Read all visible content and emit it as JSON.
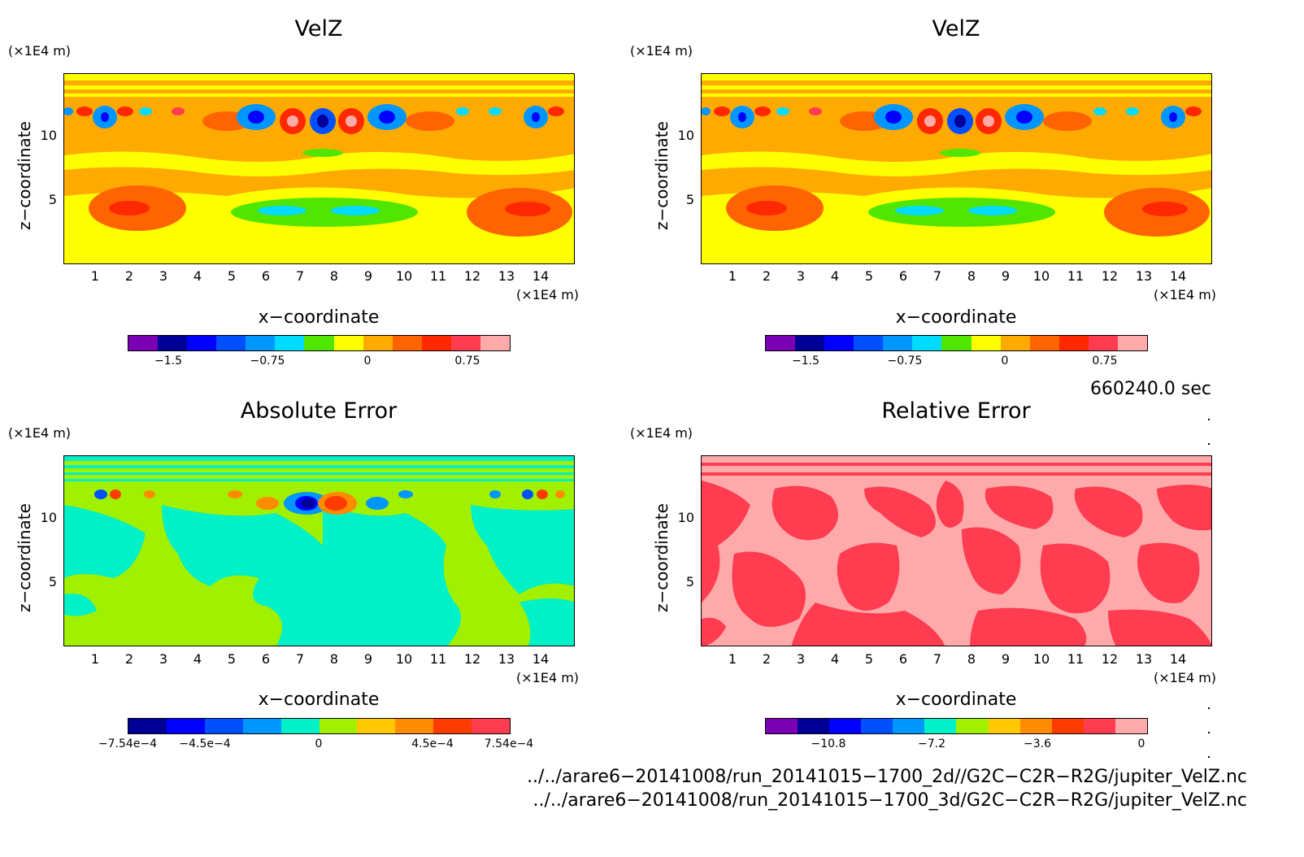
{
  "panels": [
    {
      "id": "top-left",
      "title": "VelZ",
      "y_unit": "(×1E4 m)",
      "x_unit": "(×1E4 m)",
      "xlabel": "x−coordinate",
      "ylabel": "z−coordinate",
      "x_ticks": [
        "1",
        "2",
        "3",
        "4",
        "5",
        "6",
        "7",
        "8",
        "9",
        "10",
        "11",
        "12",
        "13",
        "14"
      ],
      "y_ticks": [
        "10",
        "5"
      ],
      "colorbar": {
        "colors": [
          "#7a00b4",
          "#000096",
          "#0000ff",
          "#0050ff",
          "#0096ff",
          "#00dcff",
          "#50e600",
          "#ffff00",
          "#ffaa00",
          "#ff6400",
          "#ff2800",
          "#ff3c50",
          "#ffaaaa"
        ],
        "labels": [
          "−1.5",
          "−0.75",
          "0",
          "0.75"
        ]
      }
    },
    {
      "id": "top-right",
      "title": "VelZ",
      "y_unit": "(×1E4 m)",
      "x_unit": "(×1E4 m)",
      "xlabel": "x−coordinate",
      "ylabel": "z−coordinate",
      "x_ticks": [
        "1",
        "2",
        "3",
        "4",
        "5",
        "6",
        "7",
        "8",
        "9",
        "10",
        "11",
        "12",
        "13",
        "14"
      ],
      "y_ticks": [
        "10",
        "5"
      ],
      "colorbar": {
        "colors": [
          "#7a00b4",
          "#000096",
          "#0000ff",
          "#0050ff",
          "#0096ff",
          "#00dcff",
          "#50e600",
          "#ffff00",
          "#ffaa00",
          "#ff6400",
          "#ff2800",
          "#ff3c50",
          "#ffaaaa"
        ],
        "labels": [
          "−1.5",
          "−0.75",
          "0",
          "0.75"
        ]
      }
    },
    {
      "id": "bottom-left",
      "title": "Absolute Error",
      "y_unit": "(×1E4 m)",
      "x_unit": "(×1E4 m)",
      "xlabel": "x−coordinate",
      "ylabel": "z−coordinate",
      "x_ticks": [
        "1",
        "2",
        "3",
        "4",
        "5",
        "6",
        "7",
        "8",
        "9",
        "10",
        "11",
        "12",
        "13",
        "14"
      ],
      "y_ticks": [
        "10",
        "5"
      ],
      "colorbar": {
        "colors": [
          "#000096",
          "#0000ff",
          "#0050ff",
          "#0096ff",
          "#00f0c8",
          "#a0f000",
          "#ffc800",
          "#ff8c00",
          "#ff3c00",
          "#ff3c50"
        ],
        "labels": [
          "−7.54e−4",
          "−4.5e−4",
          "0",
          "4.5e−4",
          "7.54e−4"
        ]
      }
    },
    {
      "id": "bottom-right",
      "title": "Relative Error",
      "y_unit": "(×1E4 m)",
      "x_unit": "(×1E4 m)",
      "xlabel": "x−coordinate",
      "ylabel": "z−coordinate",
      "x_ticks": [
        "1",
        "2",
        "3",
        "4",
        "5",
        "6",
        "7",
        "8",
        "9",
        "10",
        "11",
        "12",
        "13",
        "14"
      ],
      "y_ticks": [
        "10",
        "5"
      ],
      "colorbar": {
        "colors": [
          "#7a00b4",
          "#000096",
          "#0000ff",
          "#0050ff",
          "#0096ff",
          "#00f0c8",
          "#a0f000",
          "#ffc800",
          "#ff8c00",
          "#ff3c00",
          "#ff3c50",
          "#ffaaaa"
        ],
        "labels": [
          "−10.8",
          "−7.2",
          "−3.6",
          "0"
        ]
      }
    }
  ],
  "time_label": "660240.0 sec",
  "files": [
    "../../arare6−20141008/run_20141015−1700_2d//G2C−C2R−R2G/jupiter_VelZ.nc",
    "../../arare6−20141008/run_20141015−1700_3d/G2C−C2R−R2G/jupiter_VelZ.nc"
  ],
  "chart_data": [
    {
      "type": "heatmap",
      "title": "VelZ",
      "xlabel": "x−coordinate",
      "ylabel": "z−coordinate",
      "xlim": [
        0,
        15
      ],
      "ylim": [
        0,
        15
      ],
      "colorbar_ticks": [
        -1.5,
        -0.75,
        0,
        0.75
      ]
    },
    {
      "type": "heatmap",
      "title": "VelZ",
      "xlabel": "x−coordinate",
      "ylabel": "z−coordinate",
      "xlim": [
        0,
        15
      ],
      "ylim": [
        0,
        15
      ],
      "colorbar_ticks": [
        -1.5,
        -0.75,
        0,
        0.75
      ]
    },
    {
      "type": "heatmap",
      "title": "Absolute Error",
      "xlabel": "x−coordinate",
      "ylabel": "z−coordinate",
      "xlim": [
        0,
        15
      ],
      "ylim": [
        0,
        15
      ],
      "colorbar_ticks": [
        -0.000754,
        -0.00045,
        0,
        0.00045,
        0.000754
      ]
    },
    {
      "type": "heatmap",
      "title": "Relative Error",
      "xlabel": "x−coordinate",
      "ylabel": "z−coordinate",
      "xlim": [
        0,
        15
      ],
      "ylim": [
        0,
        15
      ],
      "colorbar_ticks": [
        -10.8,
        -7.2,
        -3.6,
        0
      ]
    }
  ]
}
